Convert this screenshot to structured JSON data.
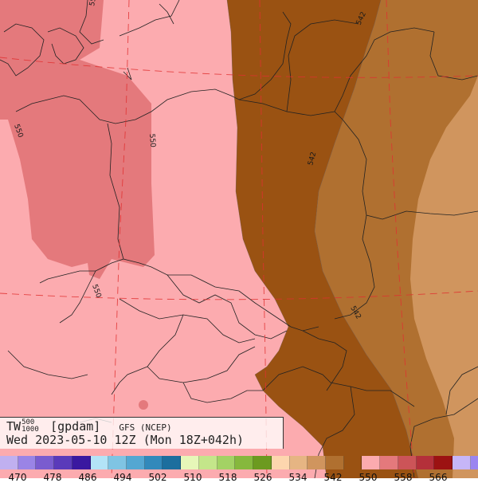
{
  "map": {
    "variable": "TW",
    "level_top": "500",
    "level_bottom": "1000",
    "unit": "[gpdam]",
    "model": "GFS (NCEP)",
    "valid_time": "Wed 2023-05-10 12Z (Mon 18Z+042h)",
    "contour_labels": [
      "550",
      "550",
      "550",
      "542",
      "542",
      "542"
    ]
  },
  "legend": {
    "colors": [
      "#c0b0f0",
      "#9a84e6",
      "#7a5ccf",
      "#5a3aba",
      "#3a18a0",
      "#b3e4f7",
      "#7fc4e3",
      "#54a7d2",
      "#3289bb",
      "#1c6e9e",
      "#e6f7b8",
      "#c4e68a",
      "#a3d264",
      "#86b83d",
      "#6c9a20",
      "#fdd6ae",
      "#e6b583",
      "#d0955e",
      "#b07030",
      "#9a5212",
      "#fcabaf",
      "#e4797c",
      "#cc5458",
      "#b4303a",
      "#9c1212",
      "#c6b6f8",
      "#9b85f0"
    ],
    "tick_labels": [
      "470",
      "478",
      "486",
      "494",
      "502",
      "510",
      "518",
      "526",
      "534",
      "542",
      "550",
      "558",
      "566"
    ]
  }
}
